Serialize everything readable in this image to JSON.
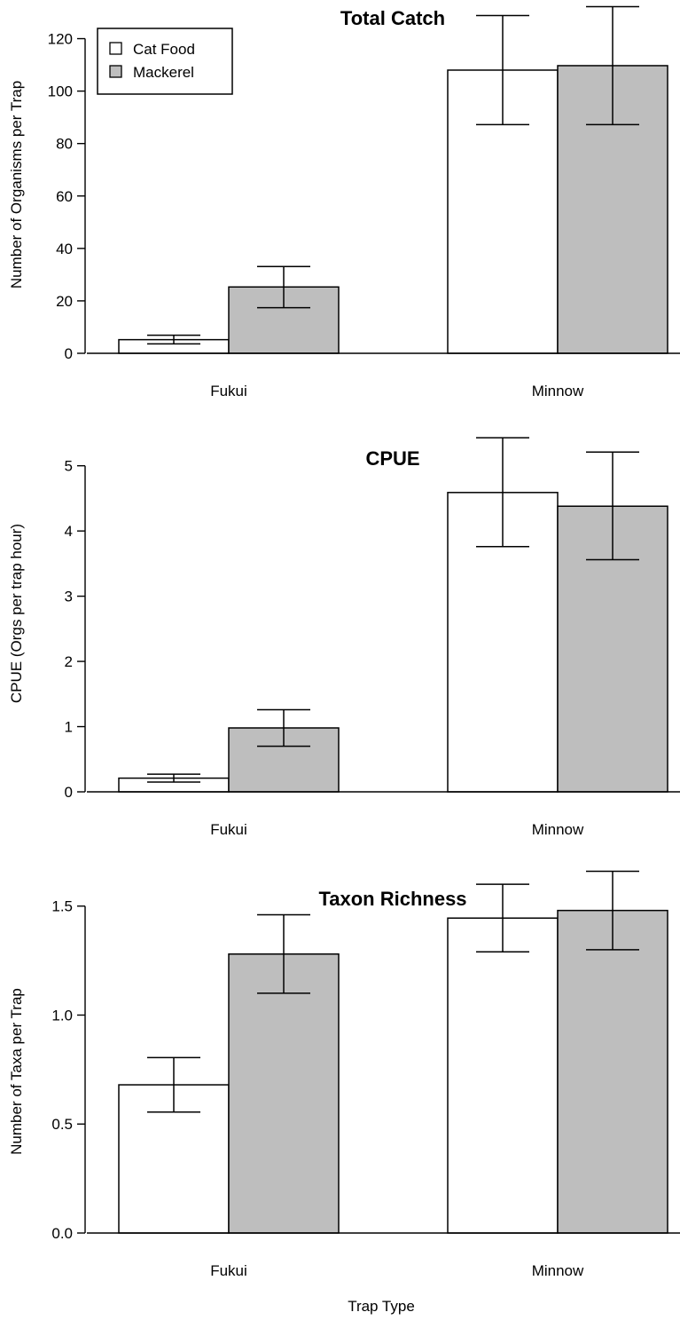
{
  "figure": {
    "xlabel": "Trap Type"
  },
  "legend": {
    "placement": "top-left",
    "items": [
      {
        "label": "Cat Food",
        "color": "#ffffff"
      },
      {
        "label": "Mackerel",
        "color": "#bebebe"
      }
    ]
  },
  "colors": {
    "cat_food": "#ffffff",
    "mackerel": "#bebebe",
    "stroke": "#000000"
  },
  "chart_data": [
    {
      "type": "bar",
      "title": "Total Catch",
      "ylabel": "Number of Organisms per Trap",
      "xlabel": "",
      "categories": [
        "Fukui",
        "Minnow"
      ],
      "ylim": [
        0,
        130
      ],
      "yticks": [
        0,
        20,
        40,
        60,
        80,
        100,
        120
      ],
      "ytick_labels": [
        "0",
        "20",
        "40",
        "60",
        "80",
        "100",
        "120"
      ],
      "series": [
        {
          "name": "Cat Food",
          "values": [
            5.2,
            108
          ],
          "err_low": [
            3.6,
            87.2
          ],
          "err_high": [
            6.9,
            128.8
          ]
        },
        {
          "name": "Mackerel",
          "values": [
            25.3,
            109.7
          ],
          "err_low": [
            17.4,
            87.2
          ],
          "err_high": [
            33.1,
            132.2
          ]
        }
      ]
    },
    {
      "type": "bar",
      "title": "CPUE",
      "ylabel": "CPUE (Orgs per trap hour)",
      "xlabel": "",
      "categories": [
        "Fukui",
        "Minnow"
      ],
      "ylim": [
        0,
        5.2
      ],
      "yticks": [
        0,
        1,
        2,
        3,
        4,
        5
      ],
      "ytick_labels": [
        "0",
        "1",
        "2",
        "3",
        "4",
        "5"
      ],
      "series": [
        {
          "name": "Cat Food",
          "values": [
            0.21,
            4.59
          ],
          "err_low": [
            0.15,
            3.76
          ],
          "err_high": [
            0.27,
            5.43
          ]
        },
        {
          "name": "Mackerel",
          "values": [
            0.98,
            4.38
          ],
          "err_low": [
            0.7,
            3.56
          ],
          "err_high": [
            1.26,
            5.21
          ]
        }
      ]
    },
    {
      "type": "bar",
      "title": "Taxon Richness",
      "ylabel": "Number of Taxa per Trap",
      "xlabel": "Trap Type",
      "categories": [
        "Fukui",
        "Minnow"
      ],
      "ylim": [
        0,
        1.56
      ],
      "yticks": [
        0,
        0.5,
        1,
        1.5
      ],
      "ytick_labels": [
        "0.0",
        "0.5",
        "1.0",
        "1.5"
      ],
      "series": [
        {
          "name": "Cat Food",
          "values": [
            0.68,
            1.445
          ],
          "err_low": [
            0.555,
            1.29
          ],
          "err_high": [
            0.805,
            1.6
          ]
        },
        {
          "name": "Mackerel",
          "values": [
            1.28,
            1.48
          ],
          "err_low": [
            1.1,
            1.3
          ],
          "err_high": [
            1.46,
            1.66
          ]
        }
      ]
    }
  ]
}
